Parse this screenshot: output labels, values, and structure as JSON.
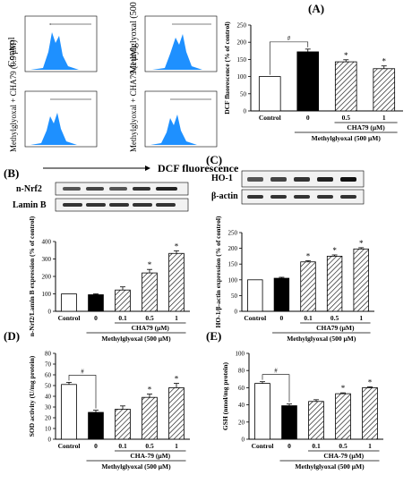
{
  "panels": {
    "A": "(A)",
    "B": "(B)",
    "C": "(C)",
    "D": "(D)",
    "E": "(E)"
  },
  "flow": {
    "labels": [
      "Control",
      "Methylglyoxal (500 μM)",
      "Methylglyoxal + CHA79 (0.5 μM)",
      "Methylglyoxal + CHA79 (1 μM)"
    ],
    "xaxis_label": "DCF fluorescence"
  },
  "blots": {
    "B": [
      {
        "label": "n-Nrf2"
      },
      {
        "label": "Lamin B"
      }
    ],
    "C": [
      {
        "label": "HO-1"
      },
      {
        "label": "β-actin"
      }
    ]
  },
  "colors": {
    "control": "#ffffff",
    "mgo": "#000000",
    "treated": "hatched"
  },
  "chart_data": [
    {
      "id": "A",
      "type": "bar",
      "categories": [
        "Control",
        "0",
        "0.5",
        "1"
      ],
      "values": [
        100,
        172,
        143,
        123
      ],
      "errors": [
        0,
        8,
        6,
        8
      ],
      "ylim": [
        0,
        250
      ],
      "yticks": [
        "0",
        "50",
        "100",
        "150",
        "200",
        "250"
      ],
      "ylabel": "DCF fluorescence (% of control)",
      "sub_label": "CHA79 (μM)",
      "group_label": "Methylglyoxal (500 μM)",
      "markers": [
        "",
        "",
        "*",
        "*"
      ],
      "sig_mark": "#"
    },
    {
      "id": "B",
      "type": "bar",
      "categories": [
        "Control",
        "0",
        "0.1",
        "0.5",
        "1"
      ],
      "values": [
        100,
        95,
        122,
        220,
        332
      ],
      "errors": [
        0,
        5,
        18,
        20,
        15
      ],
      "ylim": [
        0,
        400
      ],
      "yticks": [
        "0",
        "100",
        "200",
        "300",
        "400"
      ],
      "ylabel": "n-Nrf2/Lamin B expression (% of control)",
      "sub_label": "CHA79 (μM)",
      "group_label": "Methylglyoxal (500 μM)",
      "markers": [
        "",
        "",
        "",
        "*",
        "*"
      ],
      "sig_mark": ""
    },
    {
      "id": "C",
      "type": "bar",
      "categories": [
        "Control",
        "0",
        "0.1",
        "0.5",
        "1"
      ],
      "values": [
        100,
        105,
        157,
        175,
        198
      ],
      "errors": [
        0,
        3,
        4,
        4,
        4
      ],
      "ylim": [
        0,
        250
      ],
      "yticks": [
        "0",
        "50",
        "100",
        "150",
        "200",
        "250"
      ],
      "ylabel": "HO-1/β-actin expression (% of control)",
      "sub_label": "CHA79 (μM)",
      "group_label": "Methylglyoxal (500 μM)",
      "markers": [
        "",
        "",
        "*",
        "*",
        "*"
      ],
      "sig_mark": ""
    },
    {
      "id": "D",
      "type": "bar",
      "categories": [
        "Control",
        "0",
        "0.1",
        "0.5",
        "1"
      ],
      "values": [
        51,
        25,
        28,
        39,
        48
      ],
      "errors": [
        2,
        2,
        3,
        3,
        4
      ],
      "ylim": [
        0,
        80
      ],
      "yticks": [
        "0",
        "10",
        "20",
        "30",
        "40",
        "50",
        "60",
        "70",
        "80"
      ],
      "ylabel": "SOD activity (U/mg protein)",
      "sub_label": "CHA-79 (μM)",
      "group_label": "Methylglyoxal (500 μM)",
      "markers": [
        "",
        "",
        "",
        "*",
        "*"
      ],
      "sig_mark": "#"
    },
    {
      "id": "E",
      "type": "bar",
      "categories": [
        "Control",
        "0",
        "0.1",
        "0.5",
        "1"
      ],
      "values": [
        65,
        39,
        44,
        53,
        60
      ],
      "errors": [
        2,
        2,
        2,
        1,
        1
      ],
      "ylim": [
        0,
        100
      ],
      "yticks": [
        "0",
        "20",
        "40",
        "60",
        "80",
        "100"
      ],
      "ylabel": "GSH (nmol/mg protein)",
      "sub_label": "CHA-79 (μM)",
      "group_label": "Methylglyoxal (500 μM)",
      "markers": [
        "",
        "",
        "",
        "*",
        "*"
      ],
      "sig_mark": "#"
    }
  ]
}
